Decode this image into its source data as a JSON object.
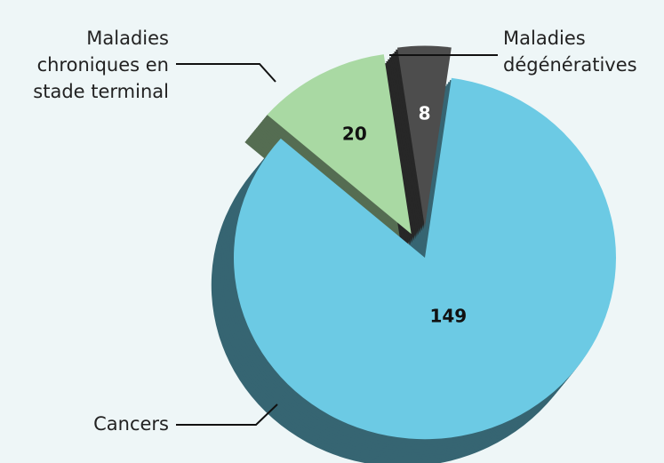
{
  "chart_data": {
    "type": "pie",
    "categories": [
      "Cancers",
      "Maladies chroniques en stade terminal",
      "Maladies dégénératives"
    ],
    "values": [
      149,
      20,
      8
    ],
    "colors": [
      "#6ccae4",
      "#a9d9a3",
      "#4d4d4d"
    ]
  }
}
